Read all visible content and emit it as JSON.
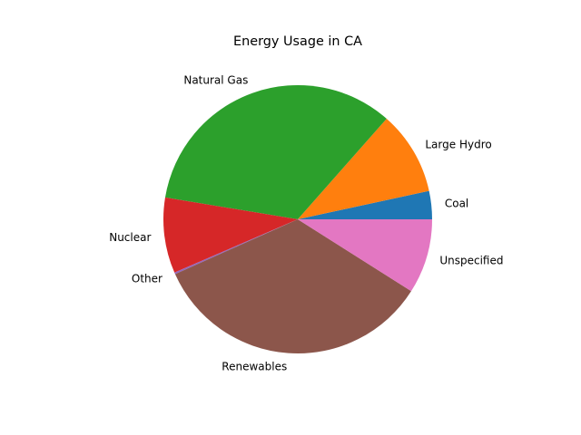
{
  "chart_data": {
    "type": "pie",
    "title": "Energy Usage in CA",
    "start_angle_deg": 0,
    "direction": "counterclockwise",
    "slices": [
      {
        "label": "Coal",
        "value": 3.4,
        "color": "#1f77b4"
      },
      {
        "label": "Large Hydro",
        "value": 10.1,
        "color": "#ff7f0e"
      },
      {
        "label": "Natural Gas",
        "value": 33.9,
        "color": "#2ca02c"
      },
      {
        "label": "Nuclear",
        "value": 9.1,
        "color": "#d62728"
      },
      {
        "label": "Other",
        "value": 0.2,
        "color": "#9467bd"
      },
      {
        "label": "Renewables",
        "value": 34.3,
        "color": "#8c564b"
      },
      {
        "label": "Unspecified",
        "value": 9.0,
        "color": "#e377c2"
      }
    ]
  }
}
